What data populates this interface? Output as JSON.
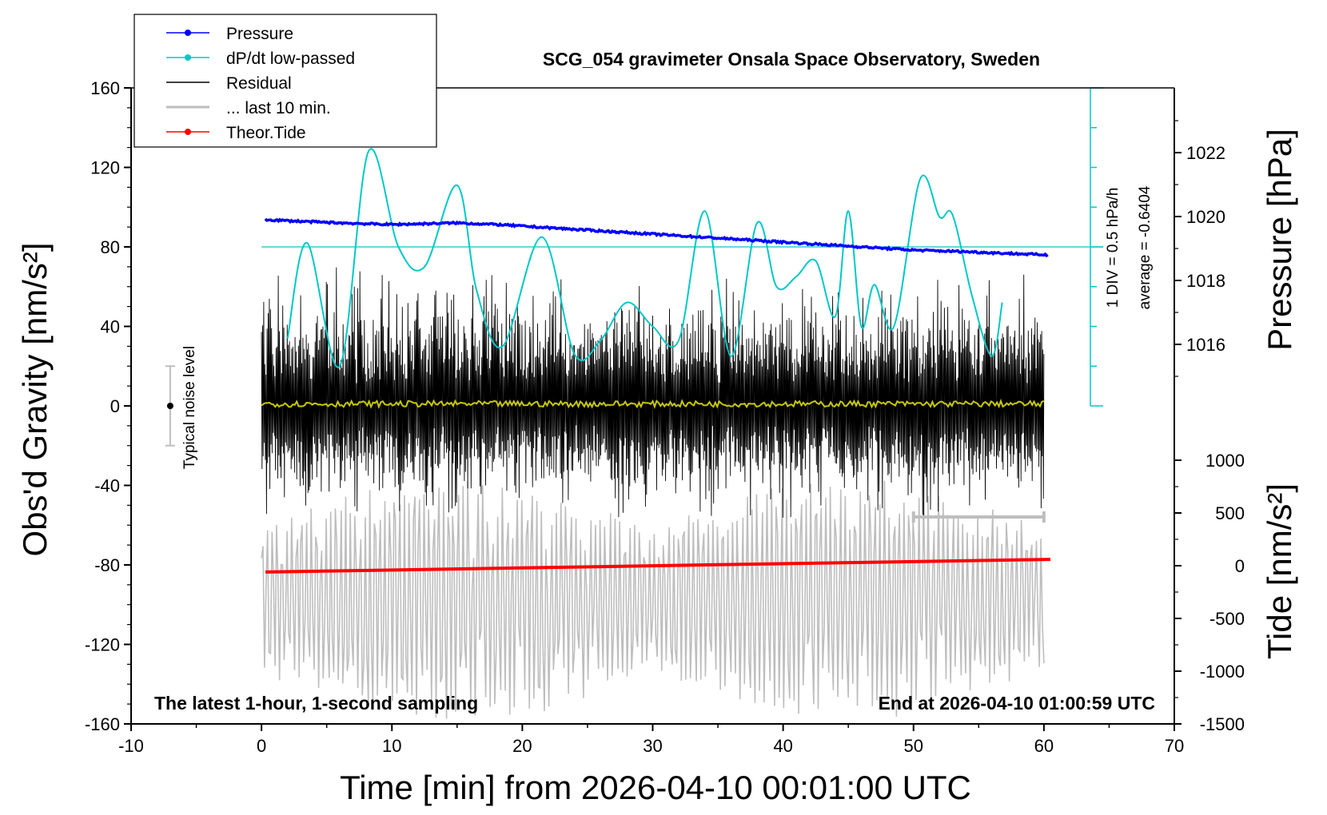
{
  "chart_data": {
    "type": "line",
    "title": "SCG_054 gravimeter Onsala Space Observatory, Sweden",
    "xlabel": "Time [min] from 2026-04-10 00:01:00 UTC",
    "ylabel_left": "Obs'd Gravity [nm/s²]",
    "ylabel_right_pressure": "Pressure [hPa]",
    "ylabel_right_tide": "Tide [nm/s²]",
    "xlim": [
      -10,
      70
    ],
    "ylim": [
      -160,
      160
    ],
    "pressure_lim": [
      1012,
      1024
    ],
    "tide_lim": [
      -1500,
      1500
    ],
    "x_ticks": [
      "-10",
      "0",
      "10",
      "20",
      "30",
      "40",
      "50",
      "60",
      "70"
    ],
    "y_ticks": [
      "-160",
      "-120",
      "-80",
      "-40",
      "0",
      "40",
      "80",
      "120",
      "160"
    ],
    "pressure_ticks": [
      "1016",
      "1018",
      "1020",
      "1022"
    ],
    "tide_ticks": [
      "-1500",
      "-1000",
      "-500",
      "0",
      "500",
      "1000"
    ],
    "grid": false,
    "legend_position": "top-left",
    "legend": [
      {
        "name": "Pressure",
        "color": "#0000ff",
        "marker": true
      },
      {
        "name": "dP/dt low-passed",
        "color": "#00c8c8",
        "marker": true
      },
      {
        "name": "Residual",
        "color": "#000000",
        "marker": false
      },
      {
        "name": "... last 10 min.",
        "color": "#bebebe",
        "marker": false
      },
      {
        "name": "Theor.Tide",
        "color": "#ff0000",
        "marker": true
      }
    ],
    "annotations": {
      "bottom_left": "The latest 1-hour, 1-second sampling",
      "bottom_right": "End at 2026-04-10 01:00:59 UTC",
      "noise_label": "Typical noise level",
      "div_label": "1 DIV = 0.5 hPa/h",
      "average_label": "average = -0.6404"
    },
    "series": [
      {
        "name": "Pressure",
        "color": "#0000ff",
        "axis": "pressure",
        "x": [
          0.3,
          3,
          6,
          10,
          15,
          18,
          22,
          26,
          30,
          34,
          38,
          42,
          46,
          50,
          54,
          57,
          60.3
        ],
        "values": [
          1019.9,
          1019.85,
          1019.8,
          1019.75,
          1019.8,
          1019.75,
          1019.65,
          1019.55,
          1019.45,
          1019.35,
          1019.25,
          1019.15,
          1019.05,
          1018.95,
          1018.9,
          1018.85,
          1018.8
        ]
      },
      {
        "name": "dP/dt low-passed",
        "color": "#00c8c8",
        "axis": "left",
        "x": [
          2,
          3.5,
          6,
          8.2,
          10.5,
          12.5,
          15,
          16.5,
          18.5,
          21.5,
          24,
          26,
          28,
          30,
          32,
          34,
          36,
          38,
          39.5,
          41,
          42.5,
          44,
          45,
          46,
          47,
          48.5,
          50.5,
          52,
          53,
          54.5,
          56,
          56.8
        ],
        "values": [
          34,
          82,
          20,
          128,
          80,
          70,
          111,
          58,
          30,
          85,
          26,
          33,
          52,
          40,
          33,
          98,
          25,
          92,
          60,
          65,
          73,
          45,
          98,
          40,
          61,
          40,
          114,
          95,
          96,
          55,
          25,
          52
        ]
      },
      {
        "name": "Residual",
        "color": "#000000",
        "axis": "left",
        "x": [
          0,
          60
        ],
        "envelope": [
          -60,
          70
        ],
        "center": 0
      },
      {
        "name": "... last 10 min.",
        "color": "#bebebe",
        "axis": "tide",
        "x": [
          0,
          60
        ],
        "envelope": [
          -1300,
          650
        ]
      },
      {
        "name": "Theor.Tide",
        "color": "#ff0000",
        "axis": "tide",
        "x": [
          0.3,
          60.5
        ],
        "values": [
          -60,
          60
        ]
      },
      {
        "name": "",
        "color": "#c8c800",
        "axis": "left",
        "x": [
          0,
          60
        ],
        "values": [
          1,
          1
        ]
      }
    ],
    "bias_line_value": 80,
    "noise_level": [
      -20,
      20
    ],
    "last10_bracket_x": [
      50,
      60
    ]
  }
}
